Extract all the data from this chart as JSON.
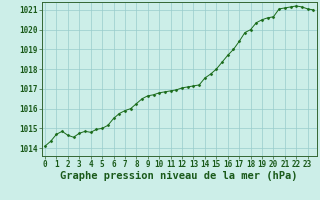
{
  "x_values": [
    0,
    0.5,
    1.0,
    1.5,
    2.0,
    2.5,
    3.0,
    3.5,
    4.0,
    4.5,
    5.0,
    5.5,
    6.0,
    6.5,
    7.0,
    7.5,
    8.0,
    8.5,
    9.0,
    9.5,
    10.0,
    10.5,
    11.0,
    11.5,
    12.0,
    12.5,
    13.0,
    13.5,
    14.0,
    14.5,
    15.0,
    15.5,
    16.0,
    16.5,
    17.0,
    17.5,
    18.0,
    18.5,
    19.0,
    19.5,
    20.0,
    20.5,
    21.0,
    21.5,
    22.0,
    22.5,
    23.0,
    23.5
  ],
  "pressure_data": [
    1014.1,
    1014.35,
    1014.7,
    1014.85,
    1014.65,
    1014.55,
    1014.75,
    1014.85,
    1014.8,
    1014.95,
    1015.0,
    1015.15,
    1015.5,
    1015.75,
    1015.9,
    1016.0,
    1016.25,
    1016.5,
    1016.65,
    1016.7,
    1016.8,
    1016.85,
    1016.9,
    1016.95,
    1017.05,
    1017.1,
    1017.15,
    1017.2,
    1017.55,
    1017.75,
    1018.0,
    1018.35,
    1018.7,
    1019.0,
    1019.4,
    1019.85,
    1020.0,
    1020.35,
    1020.5,
    1020.6,
    1020.65,
    1021.05,
    1021.1,
    1021.15,
    1021.2,
    1021.15,
    1021.05,
    1021.0
  ],
  "ylim": [
    1013.6,
    1021.4
  ],
  "yticks": [
    1014,
    1015,
    1016,
    1017,
    1018,
    1019,
    1020,
    1021
  ],
  "xticks": [
    0,
    1,
    2,
    3,
    4,
    5,
    6,
    7,
    8,
    9,
    10,
    11,
    12,
    13,
    14,
    15,
    16,
    17,
    18,
    19,
    20,
    21,
    22,
    23
  ],
  "line_color": "#1a6b1a",
  "marker_color": "#1a6b1a",
  "bg_color": "#cceee8",
  "grid_color": "#99cccc",
  "xlabel": "Graphe pression niveau de la mer (hPa)",
  "tick_fontsize": 5.5,
  "label_fontsize": 7.5
}
